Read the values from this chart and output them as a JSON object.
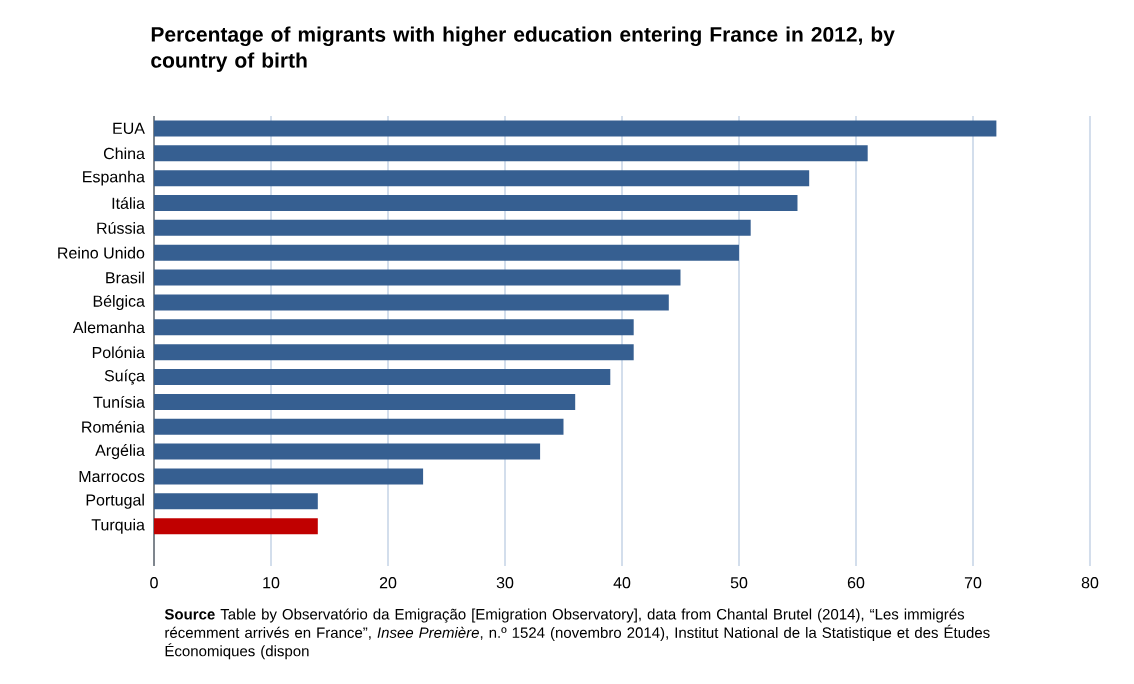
{
  "chart_data": {
    "type": "bar",
    "orientation": "horizontal",
    "title": "Percentage of migrants with higher education entering France in 2012, by country of birth",
    "categories": [
      "EUA",
      "China",
      "Espanha",
      "Itália",
      "Rússia",
      "Reino Unido",
      "Brasil",
      "Bélgica",
      "Alemanha",
      "Polónia",
      "Suíça",
      "Tunísia",
      "Roménia",
      "Argélia",
      "Marrocos",
      "Portugal",
      "Turquia"
    ],
    "values": [
      72,
      61,
      56,
      55,
      51,
      50,
      45,
      44,
      41,
      41,
      39,
      36,
      35,
      33,
      23,
      14,
      14
    ],
    "colors": [
      "#365f91",
      "#365f91",
      "#365f91",
      "#365f91",
      "#365f91",
      "#365f91",
      "#365f91",
      "#365f91",
      "#365f91",
      "#365f91",
      "#365f91",
      "#365f91",
      "#365f91",
      "#365f91",
      "#365f91",
      "#365f91",
      "#c00000"
    ],
    "xlim": [
      0,
      80
    ],
    "xticks": [
      0,
      10,
      20,
      30,
      40,
      50,
      60,
      70,
      80
    ],
    "grid": "x",
    "annotations": [
      "**Source** Table by Observatório da Emigração [Emigration Observatory], data from Chantal Brutel (2014), “Les immigrés récemment arrivés en France”, *Insee Première*, n.º 1524 (novembro 2014), Institut National de la Statistique et des Études Économiques (dispon"
    ]
  }
}
